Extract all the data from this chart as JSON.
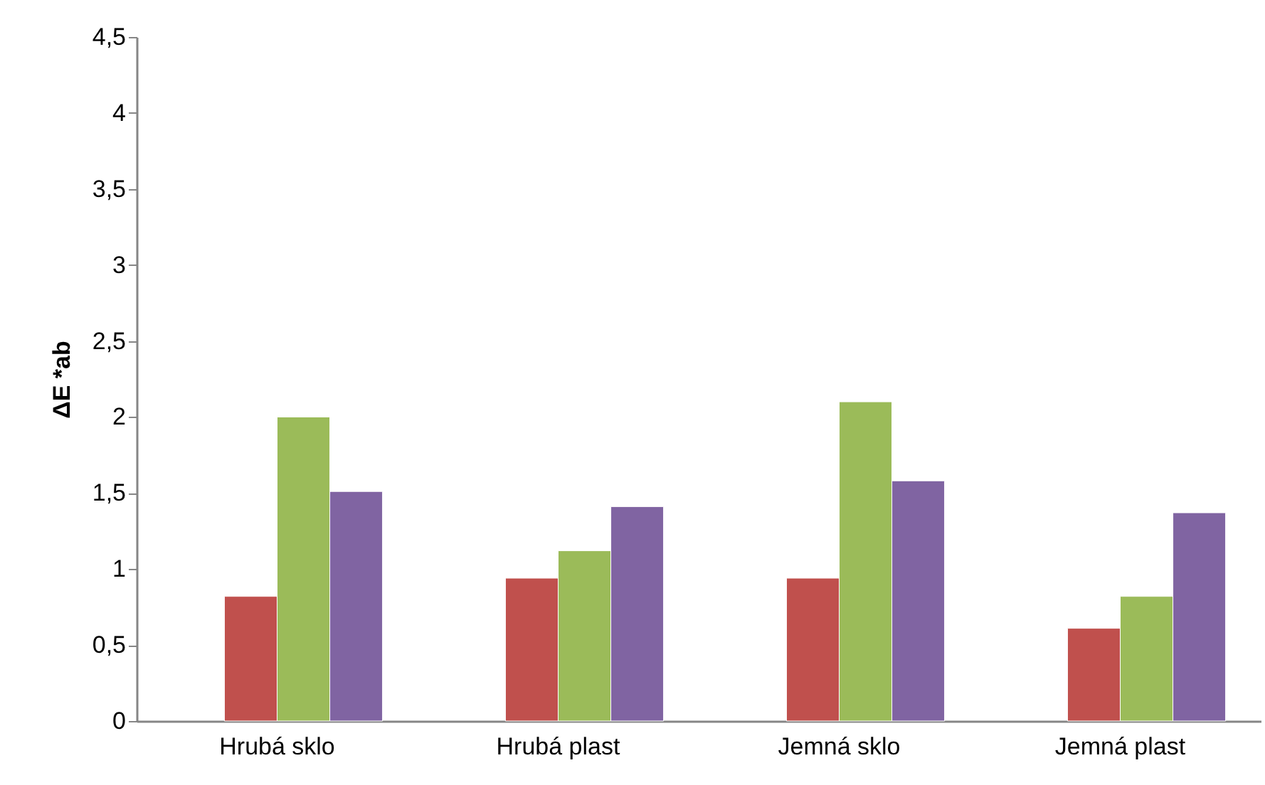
{
  "chart_data": {
    "type": "bar",
    "ylabel": "ΔE *ab",
    "categories": [
      "Hrubá sklo",
      "Hrubá plast",
      "Jemná sklo",
      "Jemná plast"
    ],
    "series": [
      {
        "values": [
          null,
          null,
          null,
          null
        ]
      },
      {
        "color": "#c0504d",
        "values": [
          0.82,
          0.94,
          0.94,
          0.61
        ]
      },
      {
        "color": "#9bbb59",
        "values": [
          2.0,
          1.12,
          2.1,
          0.82
        ]
      },
      {
        "color": "#8064a2",
        "values": [
          1.51,
          1.41,
          1.58,
          1.37
        ]
      }
    ],
    "ylim": [
      0,
      4.5
    ],
    "yticks": [
      0,
      {
        "value": 0.5,
        "label": "0,5"
      },
      1,
      {
        "value": 1.5,
        "label": "1,5"
      },
      2,
      {
        "value": 2.5,
        "label": "2,5"
      },
      3,
      {
        "value": 3.5,
        "label": "3,5"
      },
      4,
      {
        "value": 4.5,
        "label": "4,5"
      }
    ],
    "grid": false,
    "legend": false
  }
}
